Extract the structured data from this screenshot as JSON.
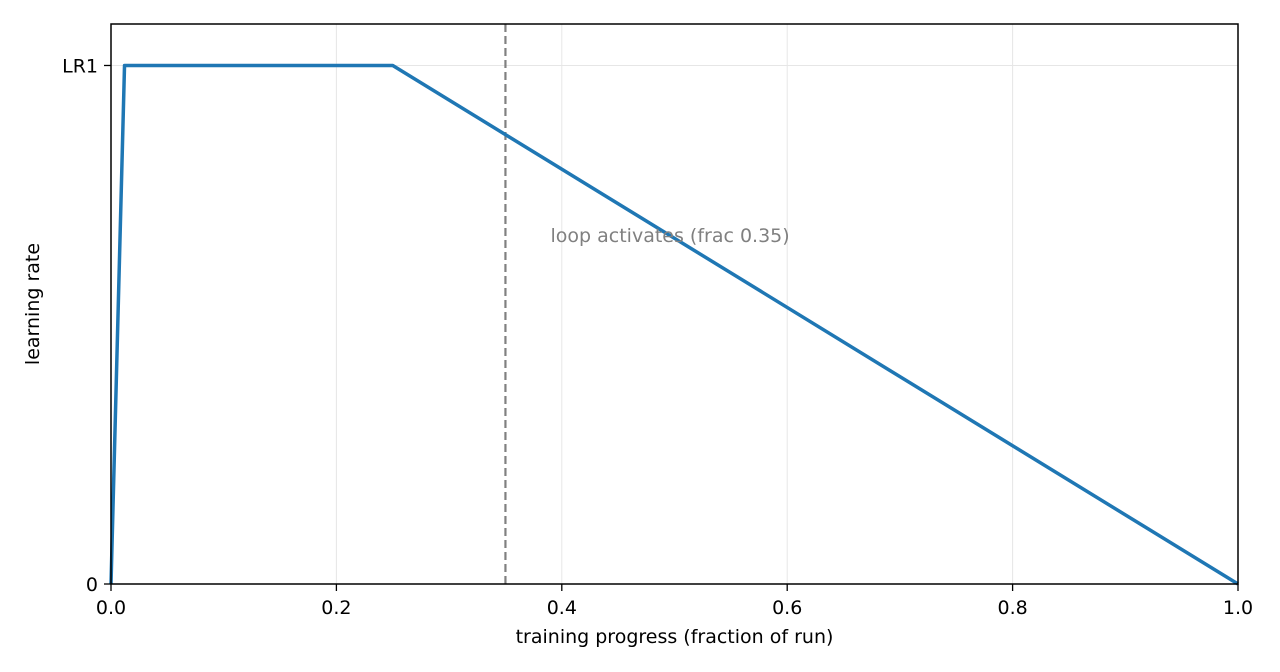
{
  "chart_data": {
    "type": "line",
    "title": "",
    "xlabel": "training progress (fraction of run)",
    "ylabel": "learning rate",
    "xlim": [
      0,
      1.0
    ],
    "ylim": [
      0,
      1.08
    ],
    "x_ticks": [
      0,
      0.2,
      0.4,
      0.6,
      0.8,
      1.0
    ],
    "x_tick_labels": [
      "0.0",
      "0.2",
      "0.4",
      "0.6",
      "0.8",
      "1.0"
    ],
    "y_ticks": [
      0,
      1
    ],
    "y_tick_labels": [
      "0",
      "LR1"
    ],
    "grid": true,
    "series": [
      {
        "color": "#1f77b4",
        "x": [
          0,
          0.012,
          0.25,
          1.0
        ],
        "y": [
          0,
          1,
          1,
          0
        ]
      }
    ],
    "vlines": [
      {
        "x": 0.35,
        "color": "#808080",
        "style": "dashed"
      }
    ],
    "annotations": [
      {
        "text": "loop activates (frac 0.35)",
        "x": 0.39,
        "y": 0.66,
        "color": "#808080"
      }
    ]
  }
}
